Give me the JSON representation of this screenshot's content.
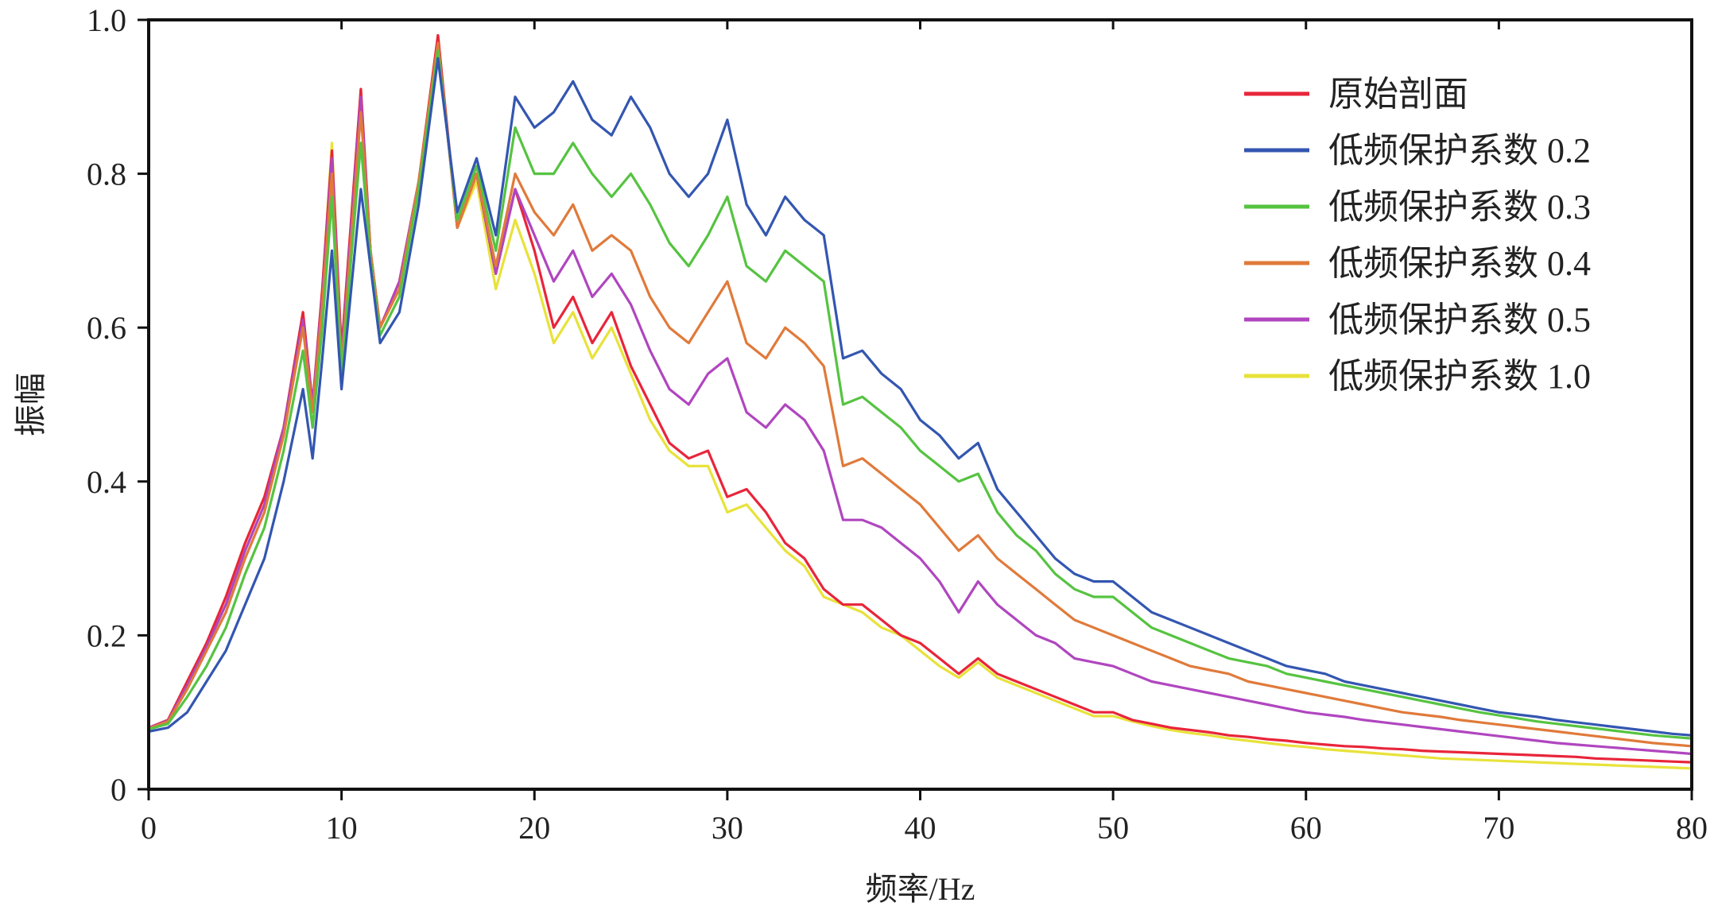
{
  "chart_data": {
    "type": "line",
    "xlabel": "频率/Hz",
    "ylabel": "振幅",
    "xlim": [
      0,
      80
    ],
    "ylim": [
      0,
      1.0
    ],
    "xticks": [
      0,
      10,
      20,
      30,
      40,
      50,
      60,
      70,
      80
    ],
    "xtick_labels": [
      "0",
      "10",
      "20",
      "30",
      "40",
      "50",
      "60",
      "70",
      "80"
    ],
    "yticks": [
      0,
      0.2,
      0.4,
      0.6,
      0.8,
      1.0
    ],
    "ytick_labels": [
      "0",
      "0.2",
      "0.4",
      "0.6",
      "0.8",
      "1.0"
    ],
    "grid": false,
    "legend_position": "top-right",
    "series": [
      {
        "name": "原始剖面",
        "color": "#e8253a",
        "x": [
          0,
          1,
          2,
          3,
          4,
          5,
          6,
          7,
          8,
          8.5,
          9,
          9.5,
          10,
          11,
          11.5,
          12,
          13,
          14,
          15,
          16,
          17,
          18,
          19,
          20,
          21,
          22,
          23,
          24,
          25,
          26,
          27,
          28,
          29,
          30,
          31,
          32,
          33,
          34,
          35,
          36,
          37,
          38,
          39,
          40,
          41,
          42,
          43,
          44,
          45,
          46,
          47,
          48,
          49,
          50,
          51,
          52,
          53,
          54,
          55,
          56,
          57,
          58,
          59,
          60,
          61,
          62,
          63,
          64,
          65,
          66,
          67,
          68,
          69,
          70,
          71,
          72,
          73,
          74,
          75,
          76,
          77,
          78,
          79,
          80
        ],
        "y": [
          0.08,
          0.09,
          0.14,
          0.19,
          0.25,
          0.32,
          0.38,
          0.47,
          0.62,
          0.5,
          0.65,
          0.83,
          0.57,
          0.91,
          0.7,
          0.6,
          0.66,
          0.79,
          0.98,
          0.73,
          0.8,
          0.67,
          0.78,
          0.7,
          0.6,
          0.64,
          0.58,
          0.62,
          0.55,
          0.5,
          0.45,
          0.43,
          0.44,
          0.38,
          0.39,
          0.36,
          0.32,
          0.3,
          0.26,
          0.24,
          0.24,
          0.22,
          0.2,
          0.19,
          0.17,
          0.15,
          0.17,
          0.15,
          0.14,
          0.13,
          0.12,
          0.11,
          0.1,
          0.1,
          0.09,
          0.085,
          0.08,
          0.077,
          0.074,
          0.07,
          0.068,
          0.065,
          0.063,
          0.06,
          0.058,
          0.056,
          0.055,
          0.053,
          0.052,
          0.05,
          0.049,
          0.048,
          0.047,
          0.046,
          0.045,
          0.044,
          0.043,
          0.042,
          0.04,
          0.039,
          0.038,
          0.037,
          0.036,
          0.035
        ]
      },
      {
        "name": "低频保护系数 0.2",
        "color": "#3356b0",
        "x": [
          0,
          1,
          2,
          3,
          4,
          5,
          6,
          7,
          8,
          8.5,
          9,
          9.5,
          10,
          11,
          11.5,
          12,
          13,
          14,
          15,
          16,
          17,
          18,
          19,
          20,
          21,
          22,
          23,
          24,
          25,
          26,
          27,
          28,
          29,
          30,
          31,
          32,
          33,
          34,
          35,
          36,
          37,
          38,
          39,
          40,
          41,
          42,
          43,
          44,
          45,
          46,
          47,
          48,
          49,
          50,
          51,
          52,
          53,
          54,
          55,
          56,
          57,
          58,
          59,
          60,
          61,
          62,
          63,
          64,
          65,
          66,
          67,
          68,
          69,
          70,
          71,
          72,
          73,
          74,
          75,
          76,
          77,
          78,
          79,
          80
        ],
        "y": [
          0.075,
          0.08,
          0.1,
          0.14,
          0.18,
          0.24,
          0.3,
          0.4,
          0.52,
          0.43,
          0.56,
          0.7,
          0.52,
          0.78,
          0.68,
          0.58,
          0.62,
          0.76,
          0.95,
          0.75,
          0.82,
          0.72,
          0.9,
          0.86,
          0.88,
          0.92,
          0.87,
          0.85,
          0.9,
          0.86,
          0.8,
          0.77,
          0.8,
          0.87,
          0.76,
          0.72,
          0.77,
          0.74,
          0.72,
          0.56,
          0.57,
          0.54,
          0.52,
          0.48,
          0.46,
          0.43,
          0.45,
          0.39,
          0.36,
          0.33,
          0.3,
          0.28,
          0.27,
          0.27,
          0.25,
          0.23,
          0.22,
          0.21,
          0.2,
          0.19,
          0.18,
          0.17,
          0.16,
          0.155,
          0.15,
          0.14,
          0.135,
          0.13,
          0.125,
          0.12,
          0.115,
          0.11,
          0.105,
          0.1,
          0.097,
          0.094,
          0.09,
          0.087,
          0.084,
          0.081,
          0.078,
          0.075,
          0.072,
          0.07
        ]
      },
      {
        "name": "低频保护系数 0.3",
        "color": "#56c341",
        "x": [
          0,
          1,
          2,
          3,
          4,
          5,
          6,
          7,
          8,
          8.5,
          9,
          9.5,
          10,
          11,
          11.5,
          12,
          13,
          14,
          15,
          16,
          17,
          18,
          19,
          20,
          21,
          22,
          23,
          24,
          25,
          26,
          27,
          28,
          29,
          30,
          31,
          32,
          33,
          34,
          35,
          36,
          37,
          38,
          39,
          40,
          41,
          42,
          43,
          44,
          45,
          46,
          47,
          48,
          49,
          50,
          51,
          52,
          53,
          54,
          55,
          56,
          57,
          58,
          59,
          60,
          61,
          62,
          63,
          64,
          65,
          66,
          67,
          68,
          69,
          70,
          71,
          72,
          73,
          74,
          75,
          76,
          77,
          78,
          79,
          80
        ],
        "y": [
          0.078,
          0.085,
          0.12,
          0.16,
          0.21,
          0.28,
          0.34,
          0.44,
          0.57,
          0.47,
          0.6,
          0.77,
          0.54,
          0.84,
          0.69,
          0.59,
          0.64,
          0.78,
          0.96,
          0.74,
          0.81,
          0.7,
          0.86,
          0.8,
          0.8,
          0.84,
          0.8,
          0.77,
          0.8,
          0.76,
          0.71,
          0.68,
          0.72,
          0.77,
          0.68,
          0.66,
          0.7,
          0.68,
          0.66,
          0.5,
          0.51,
          0.49,
          0.47,
          0.44,
          0.42,
          0.4,
          0.41,
          0.36,
          0.33,
          0.31,
          0.28,
          0.26,
          0.25,
          0.25,
          0.23,
          0.21,
          0.2,
          0.19,
          0.18,
          0.17,
          0.165,
          0.16,
          0.15,
          0.145,
          0.14,
          0.135,
          0.13,
          0.125,
          0.12,
          0.115,
          0.11,
          0.105,
          0.1,
          0.096,
          0.092,
          0.088,
          0.085,
          0.082,
          0.079,
          0.076,
          0.073,
          0.07,
          0.068,
          0.066
        ]
      },
      {
        "name": "低频保护系数 0.4",
        "color": "#e07a3a",
        "x": [
          0,
          1,
          2,
          3,
          4,
          5,
          6,
          7,
          8,
          8.5,
          9,
          9.5,
          10,
          11,
          11.5,
          12,
          13,
          14,
          15,
          16,
          17,
          18,
          19,
          20,
          21,
          22,
          23,
          24,
          25,
          26,
          27,
          28,
          29,
          30,
          31,
          32,
          33,
          34,
          35,
          36,
          37,
          38,
          39,
          40,
          41,
          42,
          43,
          44,
          45,
          46,
          47,
          48,
          49,
          50,
          51,
          52,
          53,
          54,
          55,
          56,
          57,
          58,
          59,
          60,
          61,
          62,
          63,
          64,
          65,
          66,
          67,
          68,
          69,
          70,
          71,
          72,
          73,
          74,
          75,
          76,
          77,
          78,
          79,
          80
        ],
        "y": [
          0.079,
          0.088,
          0.13,
          0.18,
          0.23,
          0.3,
          0.36,
          0.46,
          0.6,
          0.49,
          0.63,
          0.8,
          0.55,
          0.88,
          0.7,
          0.6,
          0.65,
          0.79,
          0.97,
          0.73,
          0.8,
          0.68,
          0.8,
          0.75,
          0.72,
          0.76,
          0.7,
          0.72,
          0.7,
          0.64,
          0.6,
          0.58,
          0.62,
          0.66,
          0.58,
          0.56,
          0.6,
          0.58,
          0.55,
          0.42,
          0.43,
          0.41,
          0.39,
          0.37,
          0.34,
          0.31,
          0.33,
          0.3,
          0.28,
          0.26,
          0.24,
          0.22,
          0.21,
          0.2,
          0.19,
          0.18,
          0.17,
          0.16,
          0.155,
          0.15,
          0.14,
          0.135,
          0.13,
          0.125,
          0.12,
          0.115,
          0.11,
          0.105,
          0.1,
          0.097,
          0.094,
          0.09,
          0.087,
          0.084,
          0.081,
          0.078,
          0.075,
          0.072,
          0.069,
          0.066,
          0.063,
          0.06,
          0.058,
          0.056
        ]
      },
      {
        "name": "低频保护系数 0.5",
        "color": "#b046bf",
        "x": [
          0,
          1,
          2,
          3,
          4,
          5,
          6,
          7,
          8,
          8.5,
          9,
          9.5,
          10,
          11,
          11.5,
          12,
          13,
          14,
          15,
          16,
          17,
          18,
          19,
          20,
          21,
          22,
          23,
          24,
          25,
          26,
          27,
          28,
          29,
          30,
          31,
          32,
          33,
          34,
          35,
          36,
          37,
          38,
          39,
          40,
          41,
          42,
          43,
          44,
          45,
          46,
          47,
          48,
          49,
          50,
          51,
          52,
          53,
          54,
          55,
          56,
          57,
          58,
          59,
          60,
          61,
          62,
          63,
          64,
          65,
          66,
          67,
          68,
          69,
          70,
          71,
          72,
          73,
          74,
          75,
          76,
          77,
          78,
          79,
          80
        ],
        "y": [
          0.08,
          0.089,
          0.135,
          0.185,
          0.24,
          0.31,
          0.37,
          0.47,
          0.61,
          0.5,
          0.64,
          0.82,
          0.56,
          0.9,
          0.7,
          0.6,
          0.66,
          0.79,
          0.97,
          0.73,
          0.8,
          0.67,
          0.78,
          0.72,
          0.66,
          0.7,
          0.64,
          0.67,
          0.63,
          0.57,
          0.52,
          0.5,
          0.54,
          0.56,
          0.49,
          0.47,
          0.5,
          0.48,
          0.44,
          0.35,
          0.35,
          0.34,
          0.32,
          0.3,
          0.27,
          0.23,
          0.27,
          0.24,
          0.22,
          0.2,
          0.19,
          0.17,
          0.165,
          0.16,
          0.15,
          0.14,
          0.135,
          0.13,
          0.125,
          0.12,
          0.115,
          0.11,
          0.105,
          0.1,
          0.097,
          0.094,
          0.09,
          0.087,
          0.084,
          0.081,
          0.078,
          0.075,
          0.072,
          0.069,
          0.066,
          0.063,
          0.06,
          0.058,
          0.056,
          0.054,
          0.052,
          0.05,
          0.048,
          0.046
        ]
      },
      {
        "name": "低频保护系数 1.0",
        "color": "#e8e23a",
        "x": [
          0,
          1,
          2,
          3,
          4,
          5,
          6,
          7,
          8,
          8.5,
          9,
          9.5,
          10,
          11,
          11.5,
          12,
          13,
          14,
          15,
          16,
          17,
          18,
          19,
          20,
          21,
          22,
          23,
          24,
          25,
          26,
          27,
          28,
          29,
          30,
          31,
          32,
          33,
          34,
          35,
          36,
          37,
          38,
          39,
          40,
          41,
          42,
          43,
          44,
          45,
          46,
          47,
          48,
          49,
          50,
          51,
          52,
          53,
          54,
          55,
          56,
          57,
          58,
          59,
          60,
          61,
          62,
          63,
          64,
          65,
          66,
          67,
          68,
          69,
          70,
          71,
          72,
          73,
          74,
          75,
          76,
          77,
          78,
          79,
          80
        ],
        "y": [
          0.08,
          0.09,
          0.14,
          0.19,
          0.25,
          0.32,
          0.38,
          0.47,
          0.62,
          0.5,
          0.65,
          0.84,
          0.57,
          0.91,
          0.7,
          0.6,
          0.66,
          0.79,
          0.98,
          0.73,
          0.79,
          0.65,
          0.74,
          0.67,
          0.58,
          0.62,
          0.56,
          0.6,
          0.54,
          0.48,
          0.44,
          0.42,
          0.42,
          0.36,
          0.37,
          0.34,
          0.31,
          0.29,
          0.25,
          0.24,
          0.23,
          0.21,
          0.2,
          0.18,
          0.16,
          0.145,
          0.165,
          0.145,
          0.135,
          0.125,
          0.115,
          0.105,
          0.095,
          0.095,
          0.088,
          0.082,
          0.077,
          0.073,
          0.07,
          0.066,
          0.063,
          0.06,
          0.057,
          0.055,
          0.052,
          0.05,
          0.048,
          0.046,
          0.044,
          0.042,
          0.04,
          0.039,
          0.038,
          0.037,
          0.036,
          0.035,
          0.034,
          0.033,
          0.032,
          0.031,
          0.03,
          0.029,
          0.028,
          0.027
        ]
      }
    ]
  }
}
